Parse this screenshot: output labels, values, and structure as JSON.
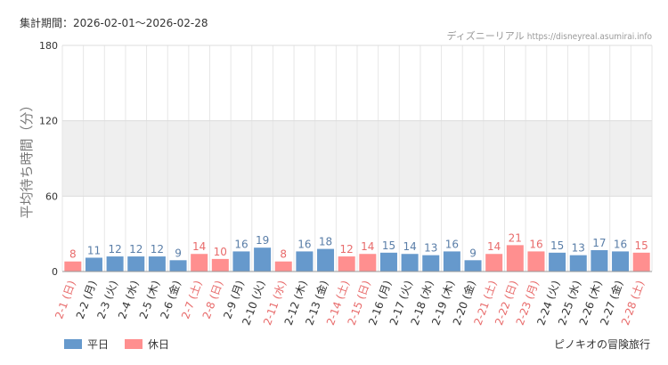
{
  "header": {
    "period_label": "集計期間：2026-02-01～2026-02-28",
    "source_site": "ディズニーリアル",
    "source_url": "https://disneyreal.asumirai.info"
  },
  "footer": {
    "attraction": "ピノキオの冒険旅行"
  },
  "colors": {
    "weekday": "#6699cc",
    "holiday": "#ff8f8f",
    "weekday_text": "#5a7ea8",
    "holiday_text": "#e86b6b",
    "band": "#efefef"
  },
  "chart_data": {
    "type": "bar",
    "ylabel": "平均待ち時間（分）",
    "xlabel": "",
    "ylim": [
      0,
      180
    ],
    "yticks": [
      0,
      60,
      120,
      180
    ],
    "highlight_band": [
      60,
      120
    ],
    "grid": true,
    "legend_position": "bottom-left",
    "legend": [
      {
        "key": "weekday",
        "label": "平日"
      },
      {
        "key": "holiday",
        "label": "休日"
      }
    ],
    "categories": [
      "2-1 (日)",
      "2-2 (月)",
      "2-3 (火)",
      "2-4 (水)",
      "2-5 (木)",
      "2-6 (金)",
      "2-7 (土)",
      "2-8 (日)",
      "2-9 (月)",
      "2-10 (火)",
      "2-11 (水)",
      "2-12 (木)",
      "2-13 (金)",
      "2-14 (土)",
      "2-15 (日)",
      "2-16 (月)",
      "2-17 (火)",
      "2-18 (水)",
      "2-19 (木)",
      "2-20 (金)",
      "2-21 (土)",
      "2-22 (日)",
      "2-23 (月)",
      "2-24 (火)",
      "2-25 (水)",
      "2-26 (木)",
      "2-27 (金)",
      "2-28 (土)"
    ],
    "values": [
      8,
      11,
      12,
      12,
      12,
      9,
      14,
      10,
      16,
      19,
      8,
      16,
      18,
      12,
      14,
      15,
      14,
      13,
      16,
      9,
      14,
      21,
      16,
      15,
      13,
      17,
      16,
      15
    ],
    "day_type": [
      "holiday",
      "weekday",
      "weekday",
      "weekday",
      "weekday",
      "weekday",
      "holiday",
      "holiday",
      "weekday",
      "weekday",
      "holiday",
      "weekday",
      "weekday",
      "holiday",
      "holiday",
      "weekday",
      "weekday",
      "weekday",
      "weekday",
      "weekday",
      "holiday",
      "holiday",
      "holiday",
      "weekday",
      "weekday",
      "weekday",
      "weekday",
      "holiday"
    ]
  }
}
